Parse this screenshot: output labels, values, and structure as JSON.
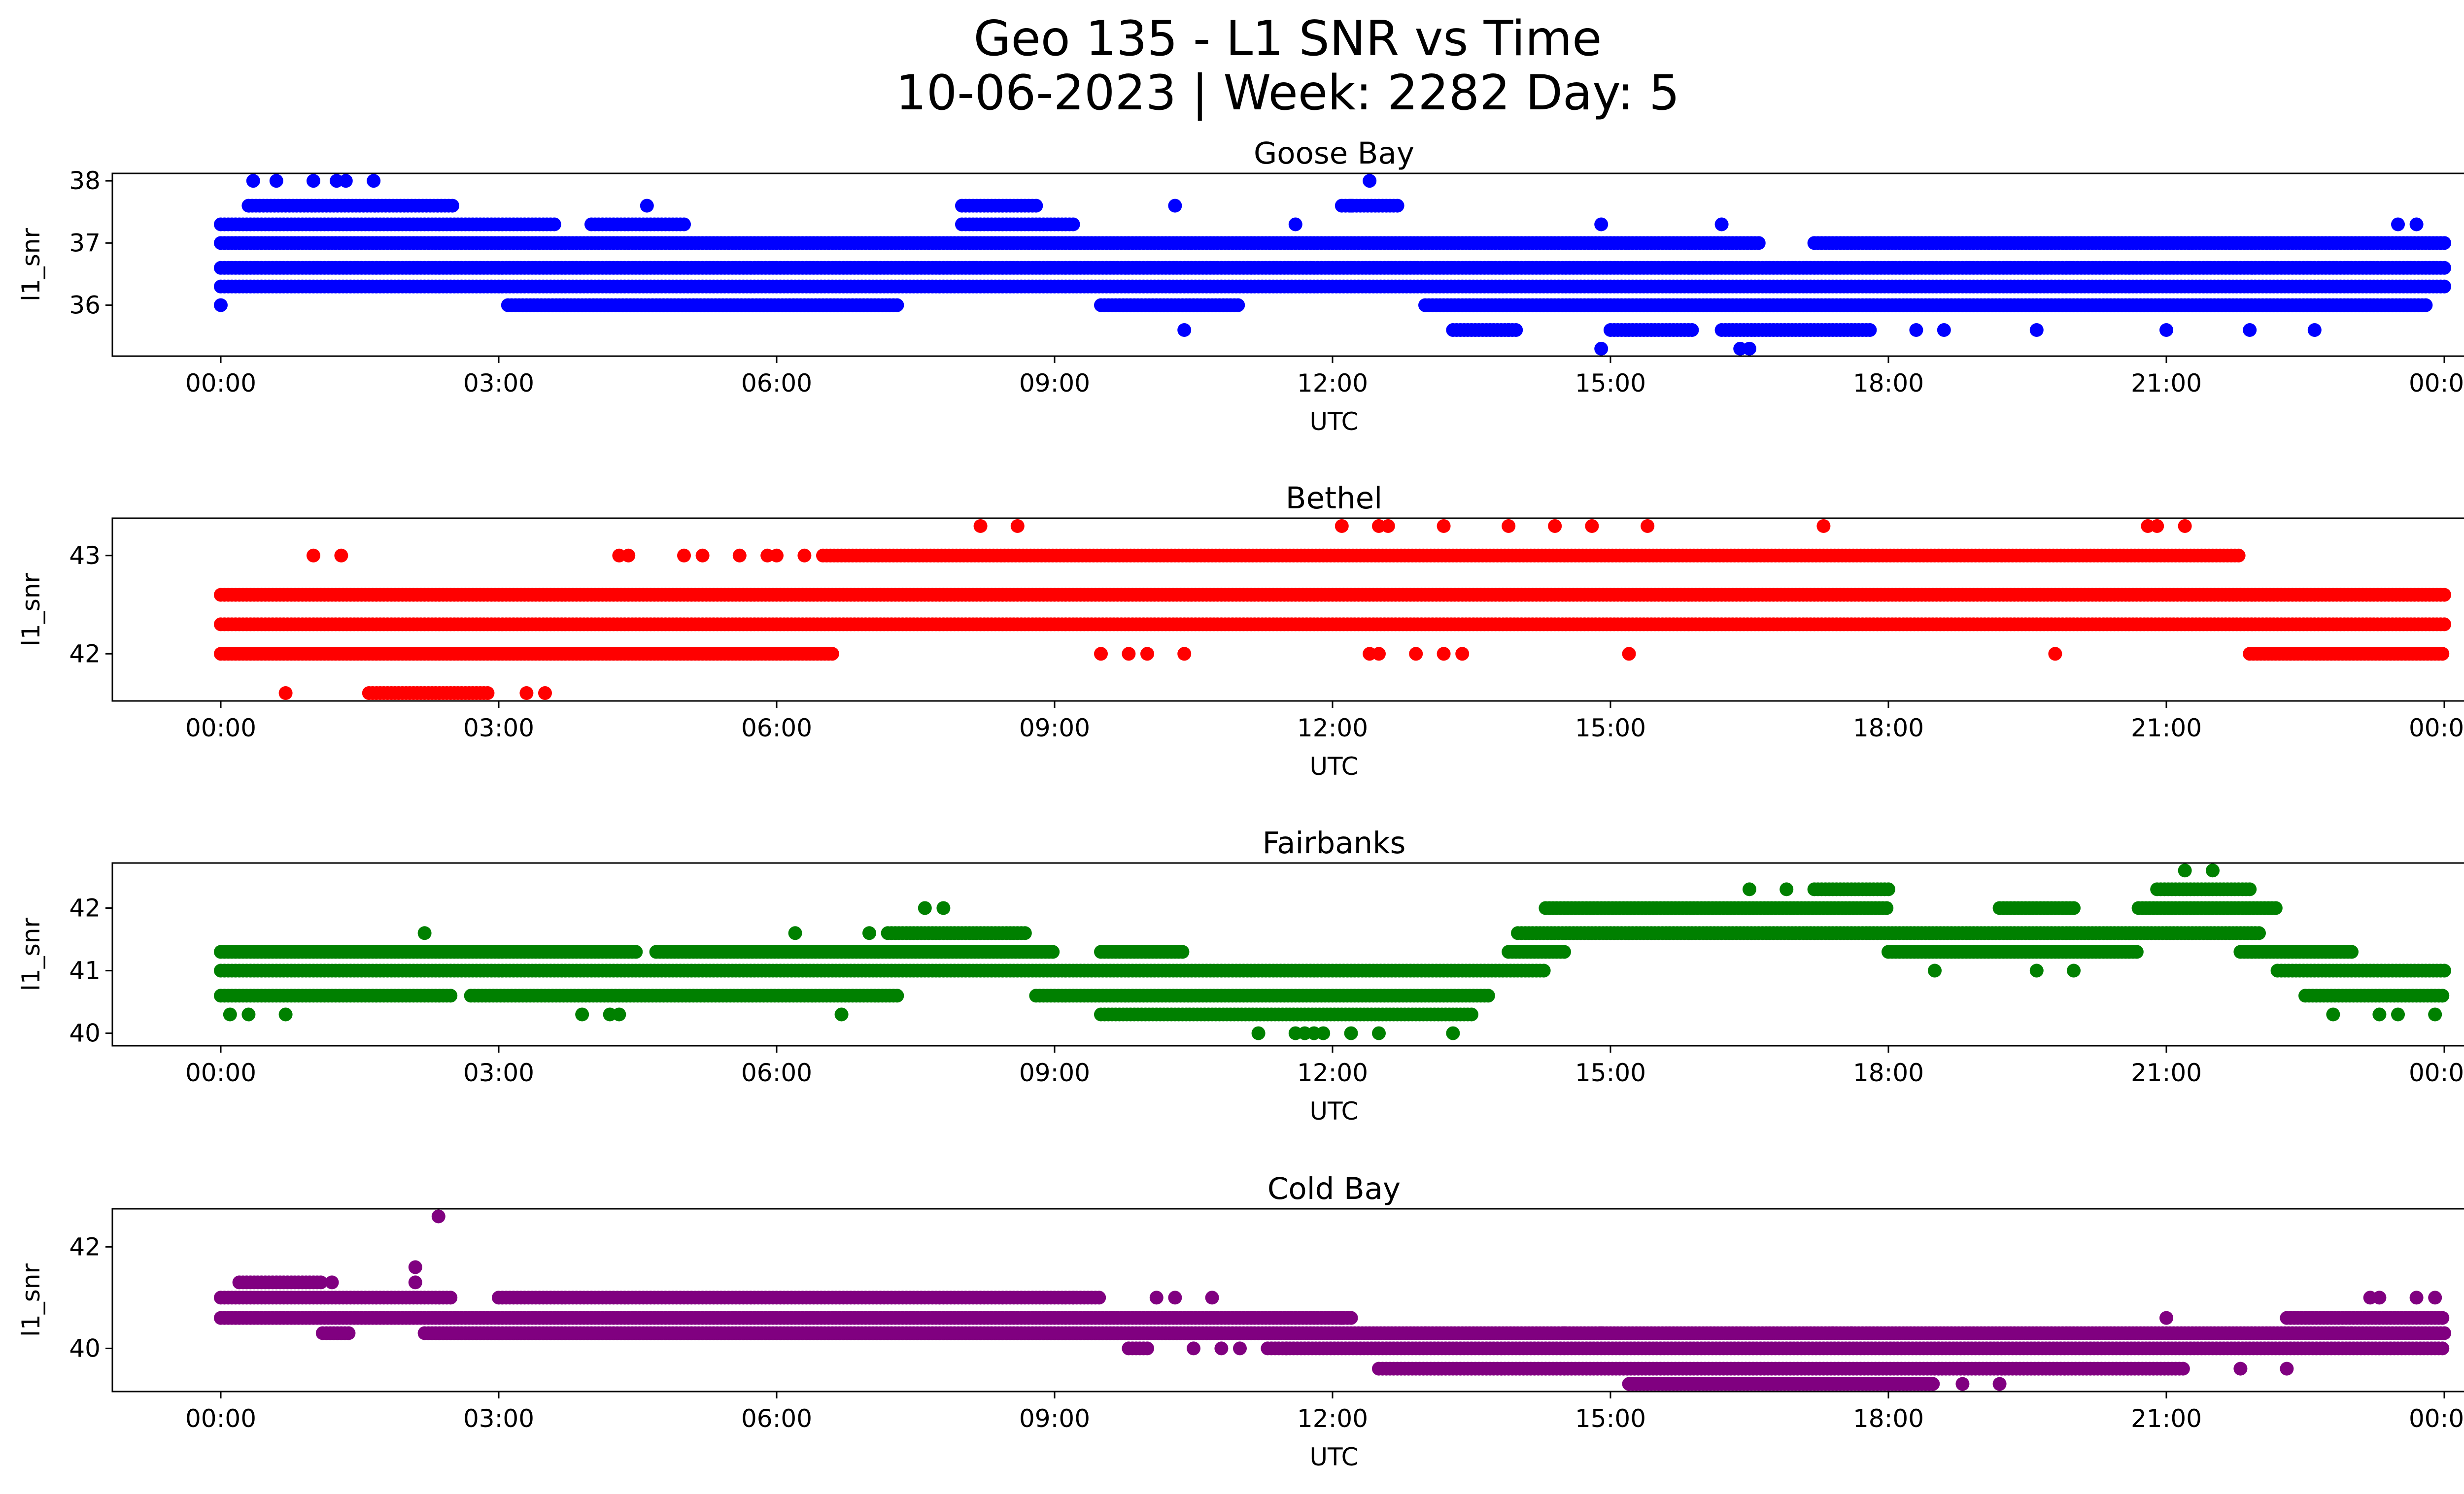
{
  "figure": {
    "title_line1": "Geo 135 - L1 SNR vs Time",
    "title_line2": "10-06-2023 | Week: 2282 Day: 5"
  },
  "chart_data": [
    {
      "type": "scatter",
      "title": "Goose Bay",
      "xlabel": "UTC",
      "ylabel": "l1_snr",
      "color": "#0000ff",
      "x_ticks": [
        "00:00",
        "03:00",
        "06:00",
        "09:00",
        "12:00",
        "15:00",
        "18:00",
        "21:00",
        "00:00"
      ],
      "x_range_hours": [
        0,
        24
      ],
      "y_ticks": [
        36,
        37,
        38
      ],
      "ylim": [
        35.18,
        38.12
      ],
      "levels": [
        {
          "y": 36.3,
          "segments": [
            [
              0,
              24
            ]
          ]
        },
        {
          "y": 36.6,
          "segments": [
            [
              0,
              24
            ]
          ]
        },
        {
          "y": 37.0,
          "segments": [
            [
              0,
              16.6
            ],
            [
              17.2,
              24
            ]
          ]
        },
        {
          "y": 37.3,
          "segments": [
            [
              0,
              3.6
            ],
            [
              4.0,
              5.0
            ],
            [
              8.0,
              9.2
            ]
          ]
        },
        {
          "y": 37.6,
          "segments": [
            [
              0.3,
              2.5
            ],
            [
              8.0,
              8.8
            ],
            [
              12.1,
              12.7
            ]
          ]
        },
        {
          "y": 36.0,
          "segments": [
            [
              3.1,
              7.3
            ],
            [
              9.5,
              11.0
            ],
            [
              13.0,
              23.8
            ]
          ]
        },
        {
          "y": 35.6,
          "segments": [
            [
              13.3,
              14.0
            ],
            [
              15.0,
              15.9
            ],
            [
              16.2,
              17.8
            ]
          ]
        }
      ],
      "scatter_points": [
        {
          "x": 0.0,
          "y": 36.0
        },
        {
          "x": 0.35,
          "y": 38.0
        },
        {
          "x": 0.6,
          "y": 38.0
        },
        {
          "x": 1.0,
          "y": 38.0
        },
        {
          "x": 1.25,
          "y": 38.0
        },
        {
          "x": 1.35,
          "y": 38.0
        },
        {
          "x": 1.65,
          "y": 38.0
        },
        {
          "x": 12.4,
          "y": 38.0
        },
        {
          "x": 12.2,
          "y": 37.6
        },
        {
          "x": 4.6,
          "y": 37.6
        },
        {
          "x": 10.3,
          "y": 37.6
        },
        {
          "x": 16.2,
          "y": 37.3
        },
        {
          "x": 11.6,
          "y": 37.3
        },
        {
          "x": 14.9,
          "y": 37.3
        },
        {
          "x": 23.5,
          "y": 37.3
        },
        {
          "x": 23.7,
          "y": 37.3
        },
        {
          "x": 10.4,
          "y": 35.6
        },
        {
          "x": 14.9,
          "y": 35.3
        },
        {
          "x": 16.4,
          "y": 35.3
        },
        {
          "x": 16.5,
          "y": 35.3
        },
        {
          "x": 18.3,
          "y": 35.6
        },
        {
          "x": 19.6,
          "y": 35.6
        },
        {
          "x": 21.0,
          "y": 35.6
        },
        {
          "x": 21.9,
          "y": 35.6
        },
        {
          "x": 22.6,
          "y": 35.6
        },
        {
          "x": 13.9,
          "y": 35.6
        },
        {
          "x": 18.6,
          "y": 35.6
        }
      ]
    },
    {
      "type": "scatter",
      "title": "Bethel",
      "xlabel": "UTC",
      "ylabel": "l1_snr",
      "color": "#ff0000",
      "x_ticks": [
        "00:00",
        "03:00",
        "06:00",
        "09:00",
        "12:00",
        "15:00",
        "18:00",
        "21:00",
        "00:00"
      ],
      "x_range_hours": [
        0,
        24
      ],
      "y_ticks": [
        42,
        43
      ],
      "ylim": [
        41.52,
        43.38
      ],
      "levels": [
        {
          "y": 42.0,
          "segments": [
            [
              0,
              6.6
            ],
            [
              21.9,
              24
            ]
          ]
        },
        {
          "y": 42.3,
          "segments": [
            [
              0,
              24
            ]
          ]
        },
        {
          "y": 42.6,
          "segments": [
            [
              0,
              24
            ]
          ]
        },
        {
          "y": 43.0,
          "segments": [
            [
              6.5,
              21.8
            ]
          ]
        },
        {
          "y": 41.6,
          "segments": [
            [
              1.6,
              2.9
            ]
          ]
        }
      ],
      "scatter_points": [
        {
          "x": 0.7,
          "y": 41.6
        },
        {
          "x": 3.3,
          "y": 41.6
        },
        {
          "x": 3.5,
          "y": 41.6
        },
        {
          "x": 1.0,
          "y": 43.0
        },
        {
          "x": 1.3,
          "y": 43.0
        },
        {
          "x": 4.3,
          "y": 43.0
        },
        {
          "x": 4.4,
          "y": 43.0
        },
        {
          "x": 5.0,
          "y": 43.0
        },
        {
          "x": 5.2,
          "y": 43.0
        },
        {
          "x": 5.6,
          "y": 43.0
        },
        {
          "x": 5.9,
          "y": 43.0
        },
        {
          "x": 6.0,
          "y": 43.0
        },
        {
          "x": 6.3,
          "y": 43.0
        },
        {
          "x": 8.2,
          "y": 43.3
        },
        {
          "x": 8.6,
          "y": 43.3
        },
        {
          "x": 12.1,
          "y": 43.3
        },
        {
          "x": 12.5,
          "y": 43.3
        },
        {
          "x": 12.6,
          "y": 43.3
        },
        {
          "x": 13.2,
          "y": 43.3
        },
        {
          "x": 13.9,
          "y": 43.3
        },
        {
          "x": 14.4,
          "y": 43.3
        },
        {
          "x": 14.8,
          "y": 43.3
        },
        {
          "x": 15.4,
          "y": 43.3
        },
        {
          "x": 17.3,
          "y": 43.3
        },
        {
          "x": 20.8,
          "y": 43.3
        },
        {
          "x": 20.9,
          "y": 43.3
        },
        {
          "x": 21.2,
          "y": 43.3
        },
        {
          "x": 9.5,
          "y": 42.0
        },
        {
          "x": 9.8,
          "y": 42.0
        },
        {
          "x": 10.0,
          "y": 42.0
        },
        {
          "x": 10.4,
          "y": 42.0
        },
        {
          "x": 12.4,
          "y": 42.0
        },
        {
          "x": 12.5,
          "y": 42.0
        },
        {
          "x": 12.9,
          "y": 42.0
        },
        {
          "x": 13.2,
          "y": 42.0
        },
        {
          "x": 13.4,
          "y": 42.0
        },
        {
          "x": 15.2,
          "y": 42.0
        },
        {
          "x": 19.8,
          "y": 42.0
        }
      ]
    },
    {
      "type": "scatter",
      "title": "Fairbanks",
      "xlabel": "UTC",
      "ylabel": "l1_snr",
      "color": "#008000",
      "x_ticks": [
        "00:00",
        "03:00",
        "06:00",
        "09:00",
        "12:00",
        "15:00",
        "18:00",
        "21:00",
        "00:00"
      ],
      "x_range_hours": [
        0,
        24
      ],
      "y_ticks": [
        40,
        41,
        42
      ],
      "ylim": [
        39.8,
        42.72
      ],
      "levels": [
        {
          "y": 40.3,
          "segments": [
            [
              9.5,
              13.5
            ]
          ]
        },
        {
          "y": 40.6,
          "segments": [
            [
              0,
              2.5
            ],
            [
              2.7,
              7.3
            ],
            [
              8.8,
              13.7
            ],
            [
              22.5,
              24
            ]
          ]
        },
        {
          "y": 41.0,
          "segments": [
            [
              0,
              14.3
            ],
            [
              22.2,
              24
            ]
          ]
        },
        {
          "y": 41.3,
          "segments": [
            [
              0,
              4.5
            ],
            [
              4.7,
              9.0
            ],
            [
              9.5,
              10.4
            ],
            [
              13.9,
              14.5
            ],
            [
              18.0,
              20.7
            ],
            [
              21.8,
              23.0
            ]
          ]
        },
        {
          "y": 41.6,
          "segments": [
            [
              7.2,
              8.7
            ],
            [
              14.0,
              22.0
            ]
          ]
        },
        {
          "y": 42.0,
          "segments": [
            [
              14.3,
              18.0
            ],
            [
              19.2,
              20.0
            ],
            [
              20.7,
              22.2
            ]
          ]
        },
        {
          "y": 42.3,
          "segments": [
            [
              17.2,
              18.0
            ],
            [
              20.9,
              21.9
            ]
          ]
        }
      ],
      "scatter_points": [
        {
          "x": 0.1,
          "y": 40.3
        },
        {
          "x": 0.3,
          "y": 40.3
        },
        {
          "x": 0.7,
          "y": 40.3
        },
        {
          "x": 3.9,
          "y": 40.3
        },
        {
          "x": 4.2,
          "y": 40.3
        },
        {
          "x": 4.3,
          "y": 40.3
        },
        {
          "x": 6.7,
          "y": 40.3
        },
        {
          "x": 22.8,
          "y": 40.3
        },
        {
          "x": 23.3,
          "y": 40.3
        },
        {
          "x": 23.5,
          "y": 40.3
        },
        {
          "x": 23.9,
          "y": 40.3
        },
        {
          "x": 2.2,
          "y": 41.6
        },
        {
          "x": 6.2,
          "y": 41.6
        },
        {
          "x": 7.0,
          "y": 41.6
        },
        {
          "x": 7.6,
          "y": 42.0
        },
        {
          "x": 7.8,
          "y": 42.0
        },
        {
          "x": 11.2,
          "y": 40.0
        },
        {
          "x": 11.6,
          "y": 40.0
        },
        {
          "x": 11.7,
          "y": 40.0
        },
        {
          "x": 11.8,
          "y": 40.0
        },
        {
          "x": 11.9,
          "y": 40.0
        },
        {
          "x": 12.2,
          "y": 40.0
        },
        {
          "x": 12.5,
          "y": 40.0
        },
        {
          "x": 13.3,
          "y": 40.0
        },
        {
          "x": 16.5,
          "y": 42.3
        },
        {
          "x": 16.9,
          "y": 42.3
        },
        {
          "x": 21.2,
          "y": 42.6
        },
        {
          "x": 21.5,
          "y": 42.6
        },
        {
          "x": 19.6,
          "y": 41.0
        },
        {
          "x": 20.0,
          "y": 41.0
        },
        {
          "x": 18.5,
          "y": 41.0
        }
      ]
    },
    {
      "type": "scatter",
      "title": "Cold Bay",
      "xlabel": "UTC",
      "ylabel": "l1_snr",
      "color": "#800080",
      "x_ticks": [
        "00:00",
        "03:00",
        "06:00",
        "09:00",
        "12:00",
        "15:00",
        "18:00",
        "21:00",
        "00:00"
      ],
      "x_range_hours": [
        0,
        24
      ],
      "y_ticks": [
        40,
        42
      ],
      "ylim": [
        39.15,
        42.75
      ],
      "levels": [
        {
          "y": 41.0,
          "segments": [
            [
              0,
              2.5
            ],
            [
              3.0,
              9.5
            ]
          ]
        },
        {
          "y": 40.6,
          "segments": [
            [
              0,
              12.2
            ],
            [
              22.3,
              24
            ]
          ]
        },
        {
          "y": 40.3,
          "segments": [
            [
              1.1,
              1.4
            ],
            [
              2.2,
              24
            ]
          ]
        },
        {
          "y": 40.0,
          "segments": [
            [
              9.8,
              10.0
            ],
            [
              11.3,
              24
            ]
          ]
        },
        {
          "y": 39.6,
          "segments": [
            [
              12.5,
              21.2
            ]
          ]
        },
        {
          "y": 39.3,
          "segments": [
            [
              15.2,
              18.5
            ]
          ]
        },
        {
          "y": 41.3,
          "segments": [
            [
              0.2,
              1.1
            ]
          ]
        }
      ],
      "scatter_points": [
        {
          "x": 2.1,
          "y": 41.6
        },
        {
          "x": 2.1,
          "y": 41.3
        },
        {
          "x": 2.35,
          "y": 42.6
        },
        {
          "x": 1.2,
          "y": 41.3
        },
        {
          "x": 9.2,
          "y": 41.0
        },
        {
          "x": 10.1,
          "y": 41.0
        },
        {
          "x": 10.3,
          "y": 41.0
        },
        {
          "x": 10.5,
          "y": 40.0
        },
        {
          "x": 10.8,
          "y": 40.0
        },
        {
          "x": 11.0,
          "y": 40.0
        },
        {
          "x": 11.5,
          "y": 40.0
        },
        {
          "x": 10.7,
          "y": 41.0
        },
        {
          "x": 12.1,
          "y": 40.6
        },
        {
          "x": 13.0,
          "y": 40.3
        },
        {
          "x": 14.5,
          "y": 40.3
        },
        {
          "x": 14.9,
          "y": 40.3
        },
        {
          "x": 17.4,
          "y": 40.3
        },
        {
          "x": 17.6,
          "y": 40.3
        },
        {
          "x": 18.8,
          "y": 39.3
        },
        {
          "x": 19.2,
          "y": 39.3
        },
        {
          "x": 21.0,
          "y": 40.6
        },
        {
          "x": 21.8,
          "y": 39.6
        },
        {
          "x": 22.3,
          "y": 39.6
        },
        {
          "x": 23.2,
          "y": 41.0
        },
        {
          "x": 23.3,
          "y": 41.0
        },
        {
          "x": 23.7,
          "y": 41.0
        },
        {
          "x": 23.9,
          "y": 41.0
        },
        {
          "x": 22.9,
          "y": 40.3
        },
        {
          "x": 23.0,
          "y": 40.3
        }
      ]
    }
  ]
}
